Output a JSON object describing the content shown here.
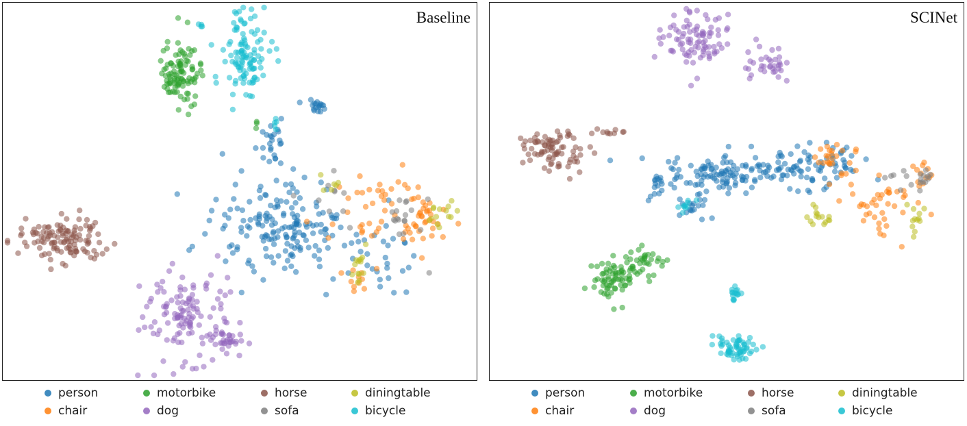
{
  "chart_data": [
    {
      "type": "scatter",
      "title": "Baseline",
      "legend_position": "bottom",
      "grid": false,
      "series": [
        {
          "name": "person",
          "color": "#1f77b4"
        },
        {
          "name": "chair",
          "color": "#ff7f0e"
        },
        {
          "name": "motorbike",
          "color": "#2ca02c"
        },
        {
          "name": "dog",
          "color": "#9467bd"
        },
        {
          "name": "horse",
          "color": "#8c564b"
        },
        {
          "name": "sofa",
          "color": "#7f7f7f"
        },
        {
          "name": "diningtable",
          "color": "#bcbd22"
        },
        {
          "name": "bicycle",
          "color": "#17becf"
        }
      ]
    },
    {
      "type": "scatter",
      "title": "SCINet",
      "legend_position": "bottom",
      "grid": false,
      "series": [
        {
          "name": "person",
          "color": "#1f77b4"
        },
        {
          "name": "chair",
          "color": "#ff7f0e"
        },
        {
          "name": "motorbike",
          "color": "#2ca02c"
        },
        {
          "name": "dog",
          "color": "#9467bd"
        },
        {
          "name": "horse",
          "color": "#8c564b"
        },
        {
          "name": "sofa",
          "color": "#7f7f7f"
        },
        {
          "name": "diningtable",
          "color": "#bcbd22"
        },
        {
          "name": "bicycle",
          "color": "#17becf"
        }
      ]
    }
  ]
}
